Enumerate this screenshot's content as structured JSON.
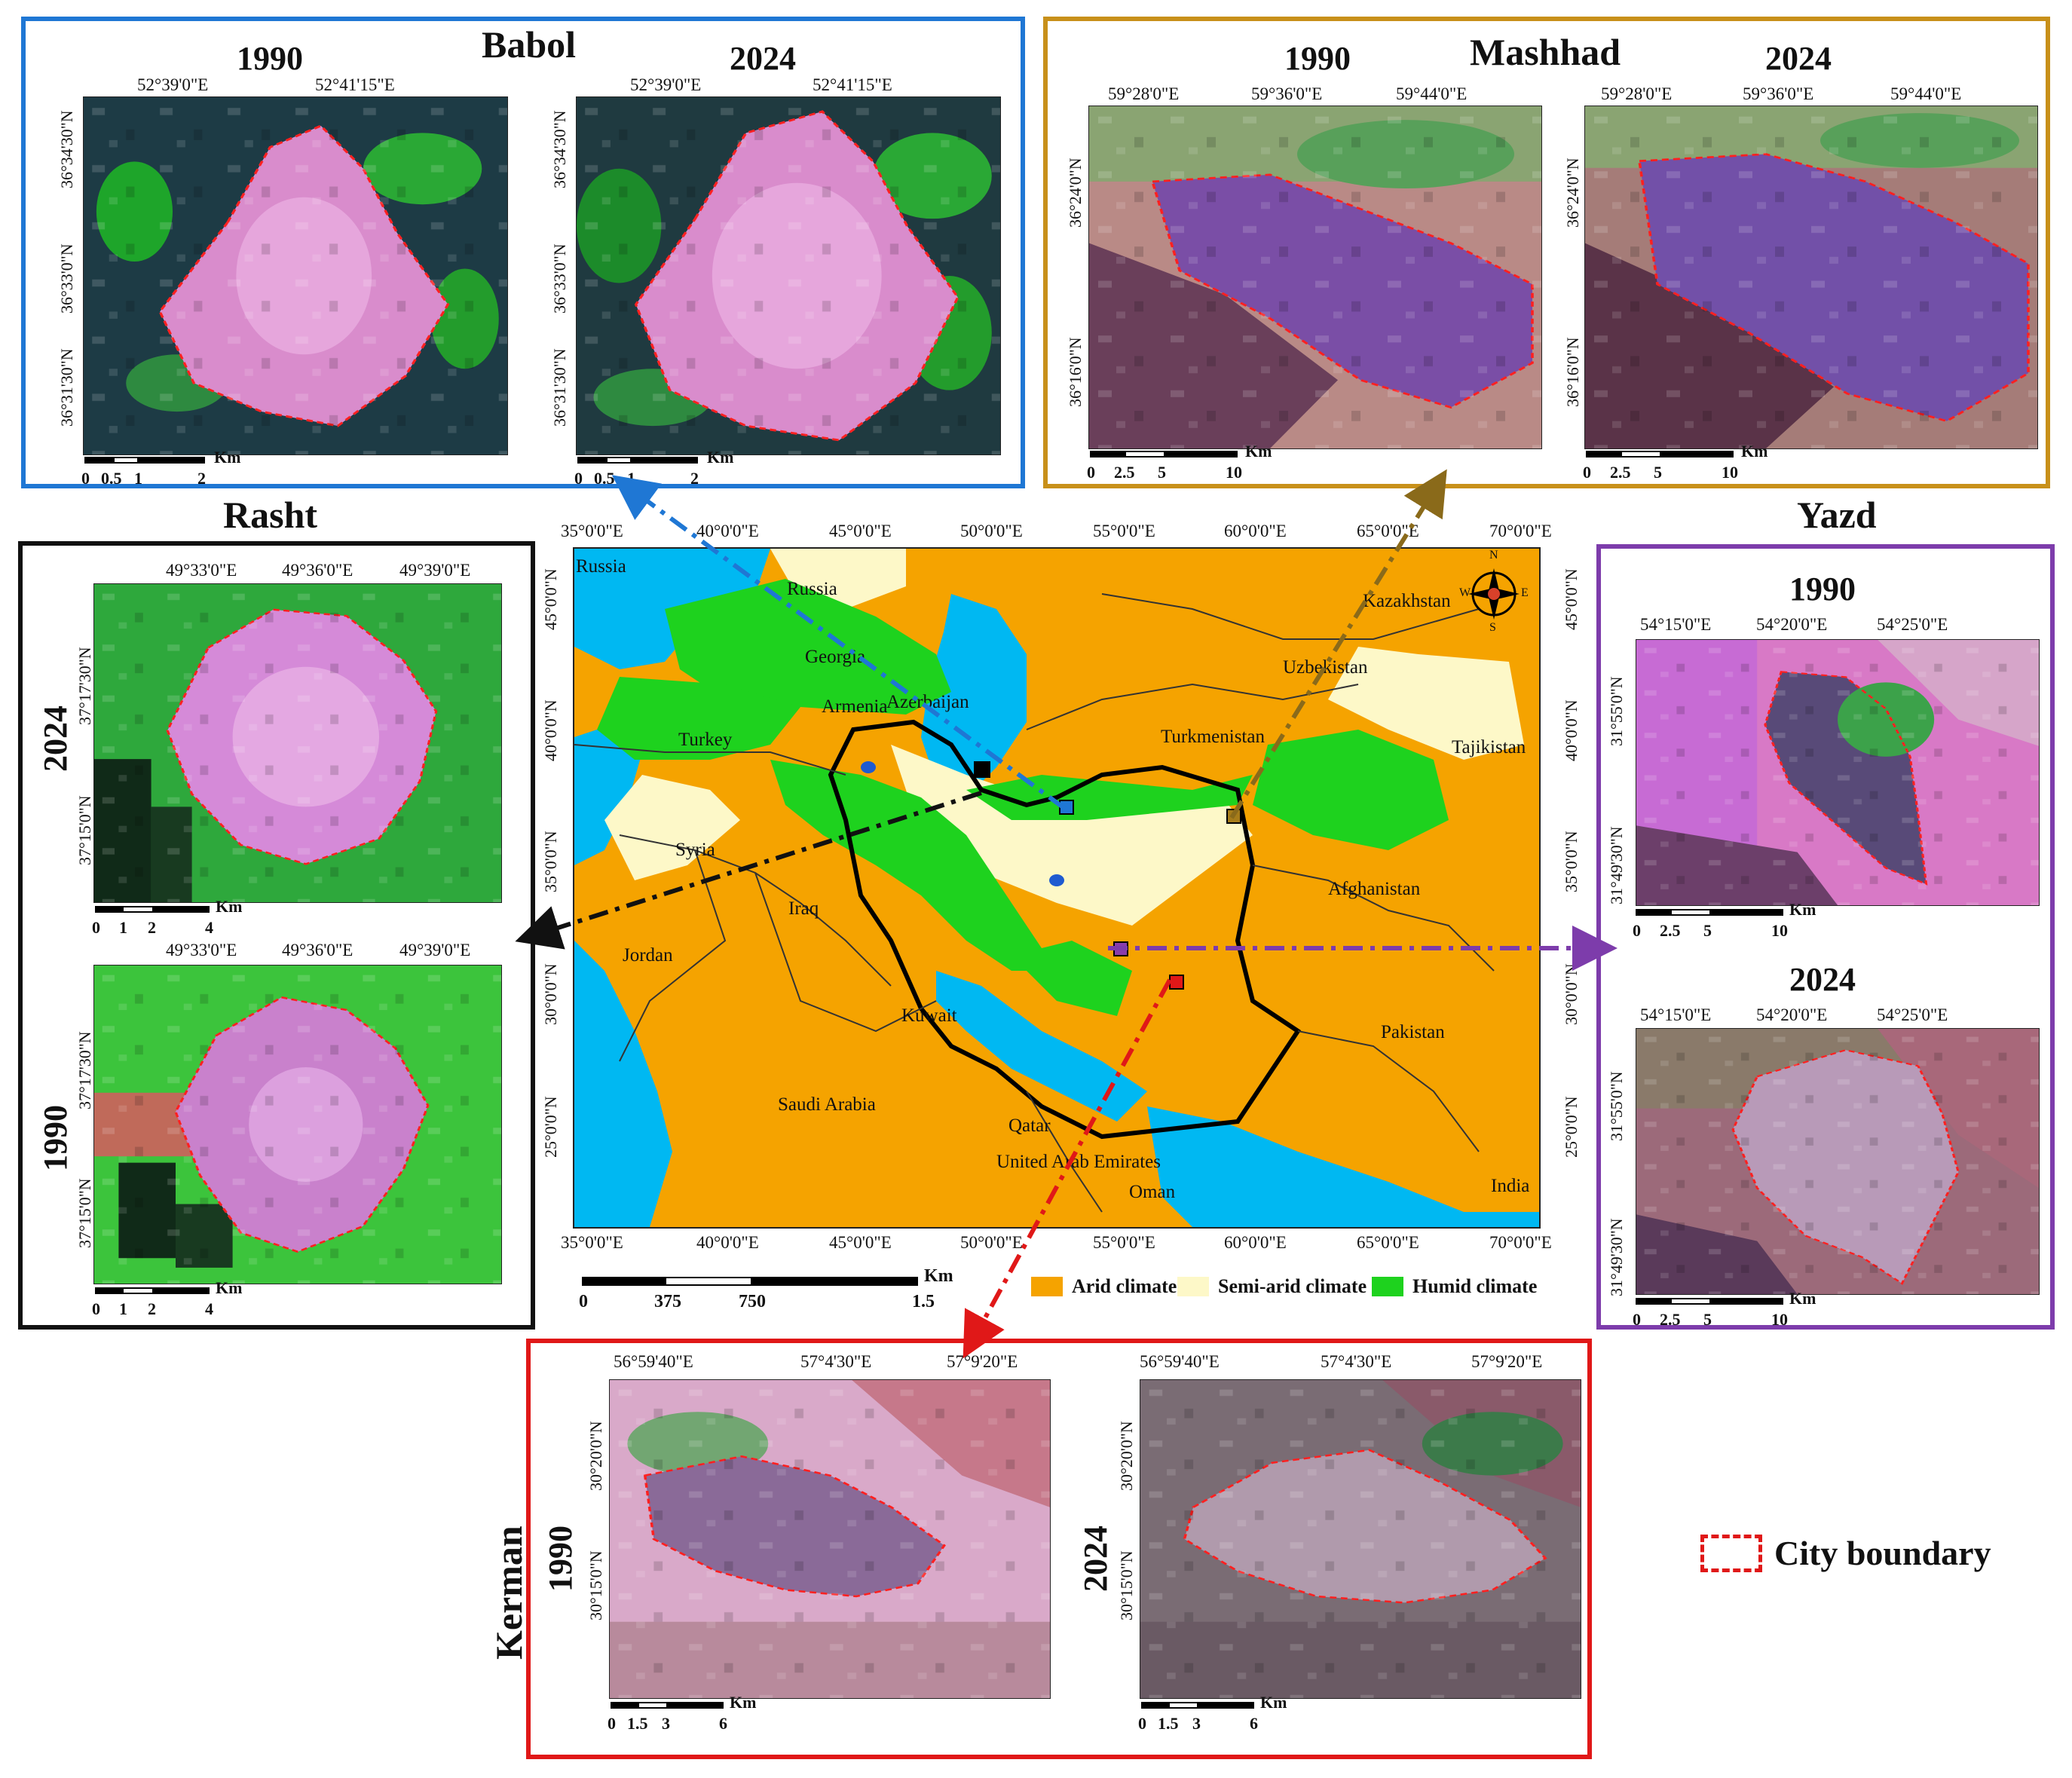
{
  "cities": {
    "babol": {
      "name": "Babol",
      "y1": "1990",
      "y2": "2024",
      "lon": [
        "52°39'0\"E",
        "52°41'15\"E"
      ],
      "lat": [
        "36°34'30\"N",
        "36°33'0\"N",
        "36°31'30\"N"
      ],
      "scale": [
        "0",
        "0.5",
        "1",
        "2"
      ],
      "unit": "Km",
      "color": "#1f77d4"
    },
    "mashhad": {
      "name": "Mashhad",
      "y1": "1990",
      "y2": "2024",
      "lon": [
        "59°28'0\"E",
        "59°36'0\"E",
        "59°44'0\"E"
      ],
      "lat": [
        "36°24'0\"N",
        "36°16'0\"N"
      ],
      "scale": [
        "0",
        "2.5",
        "5",
        "10"
      ],
      "unit": "Km",
      "color": "#c8901a"
    },
    "rasht": {
      "name": "Rasht",
      "y1": "2024",
      "y2": "1990",
      "lon": [
        "49°33'0\"E",
        "49°36'0\"E",
        "49°39'0\"E"
      ],
      "lat": [
        "37°17'30\"N",
        "37°15'0\"N"
      ],
      "scale": [
        "0",
        "1",
        "2",
        "4"
      ],
      "unit": "Km",
      "color": "#111111"
    },
    "yazd": {
      "name": "Yazd",
      "y1": "1990",
      "y2": "2024",
      "lon": [
        "54°15'0\"E",
        "54°20'0\"E",
        "54°25'0\"E"
      ],
      "lat": [
        "31°55'0\"N",
        "31°49'30\"N"
      ],
      "scale": [
        "0",
        "2.5",
        "5",
        "10"
      ],
      "unit": "Km",
      "color": "#7d3cab"
    },
    "kerman": {
      "name": "Kerman",
      "y1": "1990",
      "y2": "2024",
      "lon": [
        "56°59'40\"E",
        "57°4'30\"E",
        "57°9'20\"E"
      ],
      "lat": [
        "30°20'0\"N",
        "30°15'0\"N"
      ],
      "scale": [
        "0",
        "1.5",
        "3",
        "6"
      ],
      "unit": "Km",
      "color": "#e01818"
    }
  },
  "main_map": {
    "lon": [
      "35°0'0\"E",
      "40°0'0\"E",
      "45°0'0\"E",
      "50°0'0\"E",
      "55°0'0\"E",
      "60°0'0\"E",
      "65°0'0\"E",
      "70°0'0\"E"
    ],
    "lat": [
      "45°0'0\"N",
      "40°0'0\"N",
      "35°0'0\"N",
      "30°0'0\"N",
      "25°0'0\"N"
    ],
    "countries": [
      "Russia",
      "Russia",
      "Georgia",
      "Armenia",
      "Azerbaijan",
      "Turkey",
      "Kazakhstan",
      "Uzbekistan",
      "Turkmenistan",
      "Tajikistan",
      "Syria",
      "Iraq",
      "Jordan",
      "Afghanistan",
      "Kuwait",
      "Saudi Arabia",
      "Qatar",
      "United Arab Emirates",
      "Oman",
      "Pakistan",
      "India"
    ],
    "scale": [
      "0",
      "375",
      "750",
      "1.5"
    ],
    "unit": "Km",
    "compass": {
      "n": "N",
      "s": "S",
      "e": "E",
      "w": "W"
    }
  },
  "legend": {
    "items": [
      {
        "label": "Arid climate",
        "color": "#f5a300"
      },
      {
        "label": "Semi-arid climate",
        "color": "#fdf8c8"
      },
      {
        "label": "Humid climate",
        "color": "#1ed21e"
      }
    ],
    "boundary": "City boundary"
  }
}
